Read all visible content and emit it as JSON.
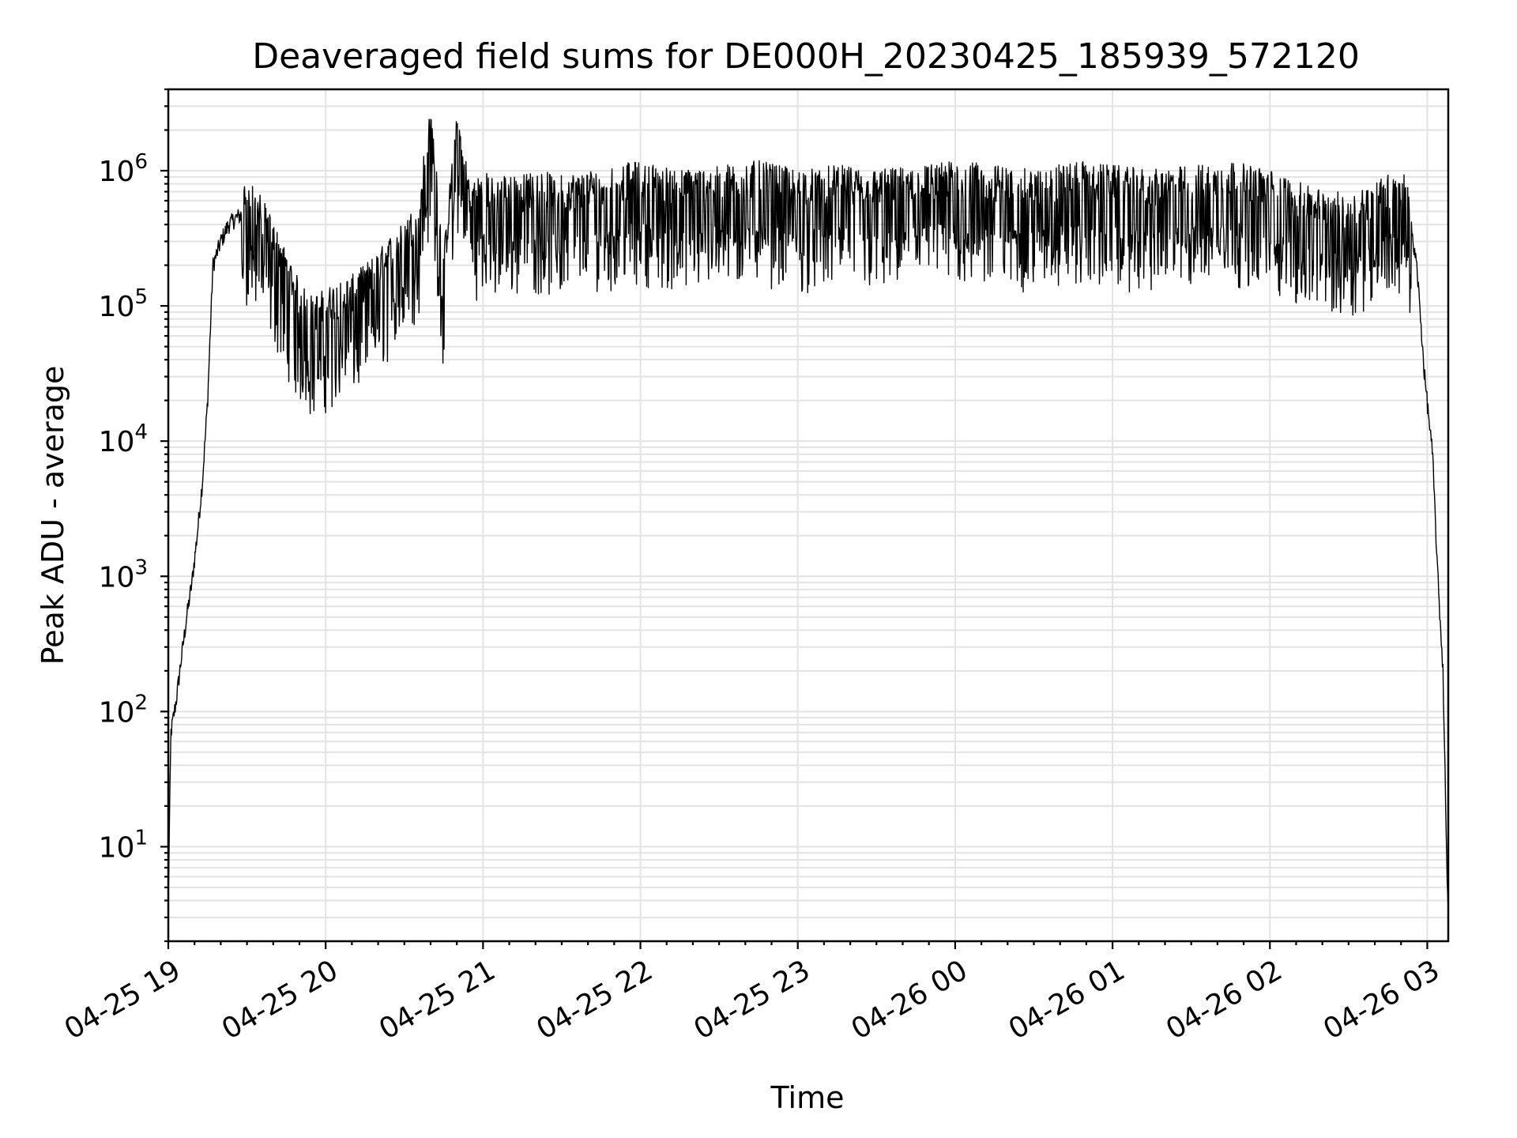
{
  "chart_data": {
    "type": "line",
    "title": "Deaveraged field sums for DE000H_20230425_185939_572120",
    "xlabel": "Time",
    "ylabel": "Peak ADU - average",
    "yscale": "log",
    "ylim": [
      2,
      4000000
    ],
    "xlim": [
      "2023-04-25 19:00",
      "2023-04-26 03:08"
    ],
    "x_tick_labels": [
      "04-25 19",
      "04-25 20",
      "04-25 21",
      "04-25 22",
      "04-25 23",
      "04-26 00",
      "04-26 01",
      "04-26 02",
      "04-26 03"
    ],
    "y_tick_labels": [
      {
        "base": "10",
        "exp": "1",
        "value": 10
      },
      {
        "base": "10",
        "exp": "2",
        "value": 100
      },
      {
        "base": "10",
        "exp": "3",
        "value": 1000
      },
      {
        "base": "10",
        "exp": "4",
        "value": 10000
      },
      {
        "base": "10",
        "exp": "5",
        "value": 100000
      },
      {
        "base": "10",
        "exp": "6",
        "value": 1000000
      }
    ],
    "grid": true,
    "series": [
      {
        "color": "#000000",
        "x": [
          "2023-04-25 19:00",
          "2023-04-25 19:01",
          "2023-04-25 19:03",
          "2023-04-25 19:05",
          "2023-04-25 19:07",
          "2023-04-25 19:09",
          "2023-04-25 19:11",
          "2023-04-25 19:13",
          "2023-04-25 19:15",
          "2023-04-25 19:17",
          "2023-04-25 19:20",
          "2023-04-25 19:23",
          "2023-04-25 19:26",
          "2023-04-25 19:30",
          "2023-04-25 19:35",
          "2023-04-25 19:40",
          "2023-04-25 19:45",
          "2023-04-25 19:50",
          "2023-04-25 19:55",
          "2023-04-25 20:00",
          "2023-04-25 20:05",
          "2023-04-25 20:10",
          "2023-04-25 20:15",
          "2023-04-25 20:20",
          "2023-04-25 20:25",
          "2023-04-25 20:30",
          "2023-04-25 20:35",
          "2023-04-25 20:40",
          "2023-04-25 20:45",
          "2023-04-25 20:50",
          "2023-04-25 20:55",
          "2023-04-25 21:00",
          "2023-04-25 21:05",
          "2023-04-25 21:10",
          "2023-04-25 21:15",
          "2023-04-25 21:20",
          "2023-04-25 21:30",
          "2023-04-25 21:40",
          "2023-04-25 21:50",
          "2023-04-25 22:00",
          "2023-04-25 22:15",
          "2023-04-25 22:30",
          "2023-04-25 22:45",
          "2023-04-25 23:00",
          "2023-04-25 23:15",
          "2023-04-25 23:30",
          "2023-04-25 23:45",
          "2023-04-26 00:00",
          "2023-04-26 00:15",
          "2023-04-26 00:30",
          "2023-04-26 00:45",
          "2023-04-26 01:00",
          "2023-04-26 01:15",
          "2023-04-26 01:30",
          "2023-04-26 01:45",
          "2023-04-26 02:00",
          "2023-04-26 02:15",
          "2023-04-26 02:30",
          "2023-04-26 02:40",
          "2023-04-26 02:48",
          "2023-04-26 02:52",
          "2023-04-26 02:56",
          "2023-04-26 02:59",
          "2023-04-26 03:02",
          "2023-04-26 03:04",
          "2023-04-26 03:06",
          "2023-04-26 03:07",
          "2023-04-26 03:08"
        ],
        "y": [
          4,
          70,
          120,
          250,
          500,
          900,
          2000,
          5000,
          20000,
          200000,
          300000,
          400000,
          450000,
          500000,
          400000,
          250000,
          150000,
          90000,
          70000,
          80000,
          90000,
          100000,
          120000,
          150000,
          200000,
          250000,
          350000,
          1900000,
          150000,
          1800000,
          500000,
          600000,
          500000,
          600000,
          550000,
          600000,
          550000,
          600000,
          650000,
          700000,
          600000,
          650000,
          700000,
          600000,
          650000,
          600000,
          650000,
          700000,
          650000,
          600000,
          700000,
          650000,
          600000,
          650000,
          700000,
          600000,
          450000,
          400000,
          500000,
          600000,
          550000,
          200000,
          30000,
          8000,
          1000,
          200,
          20,
          3
        ]
      }
    ]
  }
}
